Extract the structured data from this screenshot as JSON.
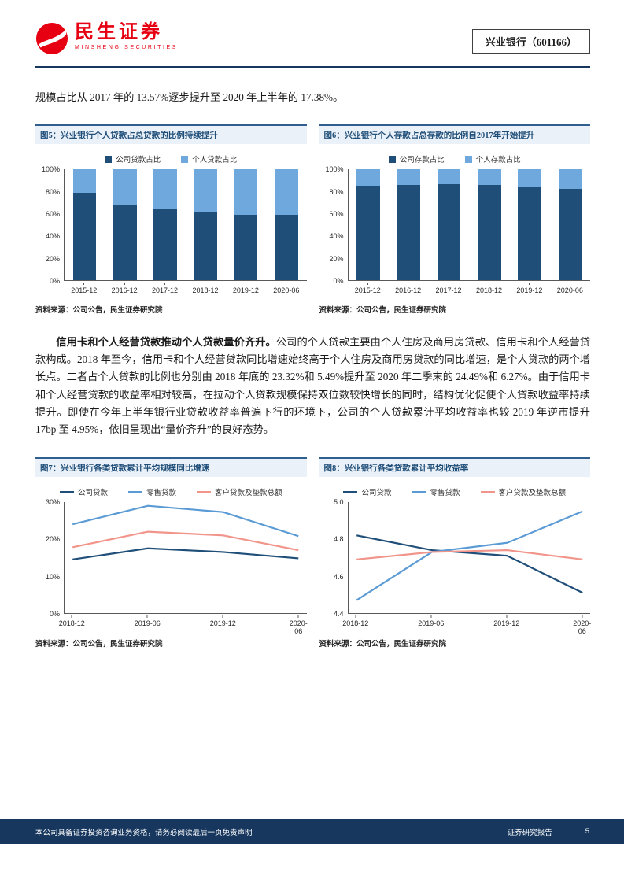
{
  "header": {
    "brand_cn": "民生证券",
    "brand_en": "MINSHENG SECURITIES",
    "stock_label": "兴业银行（601166）"
  },
  "intro_text": "规模占比从 2017 年的 13.57%逐步提升至 2020 年上半年的 17.38%。",
  "paragraph": {
    "bold_lead": "信用卡和个人经营贷款推动个人贷款量价齐升。",
    "body": "公司的个人贷款主要由个人住房及商用房贷款、信用卡和个人经营贷款构成。2018 年至今，信用卡和个人经营贷款同比增速始终高于个人住房及商用房贷款的同比增速，是个人贷款的两个增长点。二者占个人贷款的比例也分别由 2018 年底的 23.32%和 5.49%提升至 2020 年二季末的 24.49%和 6.27%。由于信用卡和个人经营贷款的收益率相对较高，在拉动个人贷款规模保持双位数较快增长的同时，结构优化促使个人贷款收益率持续提升。即使在今年上半年银行业贷款收益率普遍下行的环境下，公司的个人贷款累计平均收益率也较 2019 年逆市提升 17bp 至 4.95%，依旧呈现出“量价齐升”的良好态势。"
  },
  "source_note": "资料来源：公司公告，民生证券研究院",
  "footer": {
    "left": "本公司具备证券投资咨询业务资格，请务必阅读最后一页免责声明",
    "right": "证券研究报告",
    "page": "5"
  },
  "colors": {
    "brand_red": "#E60012",
    "navy": "#1F4E79",
    "light_blue": "#6FA8DC",
    "pink": "#F1948A",
    "footer_bg": "#17375E"
  },
  "chart_data": [
    {
      "type": "bar",
      "stacked": true,
      "title": "图5：兴业银行个人贷款占总贷款的比例持续提升",
      "categories": [
        "2015-12",
        "2016-12",
        "2017-12",
        "2018-12",
        "2019-12",
        "2020-06"
      ],
      "series": [
        {
          "name": "公司贷款占比",
          "color": "#1F4E79",
          "values": [
            79,
            68,
            64,
            62,
            59,
            59
          ]
        },
        {
          "name": "个人贷款占比",
          "color": "#6FA8DC",
          "values": [
            21,
            32,
            36,
            38,
            41,
            41
          ]
        }
      ],
      "ylim": [
        0,
        100
      ],
      "yticks": [
        "0%",
        "20%",
        "40%",
        "60%",
        "80%",
        "100%"
      ],
      "legend_position": "top",
      "grid": false
    },
    {
      "type": "bar",
      "stacked": true,
      "title": "图6：兴业银行个人存款占总存款的比例自2017年开始提升",
      "categories": [
        "2015-12",
        "2016-12",
        "2017-12",
        "2018-12",
        "2019-12",
        "2020-06"
      ],
      "series": [
        {
          "name": "公司存款占比",
          "color": "#1F4E79",
          "values": [
            85,
            86.2,
            86.4,
            85.7,
            84.4,
            82.6
          ]
        },
        {
          "name": "个人存款占比",
          "color": "#6FA8DC",
          "values": [
            15,
            13.8,
            13.6,
            14.3,
            15.6,
            17.4
          ]
        }
      ],
      "ylim": [
        0,
        100
      ],
      "yticks": [
        "0%",
        "20%",
        "40%",
        "60%",
        "80%",
        "100%"
      ],
      "legend_position": "top",
      "grid": false
    },
    {
      "type": "line",
      "title": "图7：兴业银行各类贷款累计平均规模同比增速",
      "x": [
        "2018-12",
        "2019-06",
        "2019-12",
        "2020-06"
      ],
      "series": [
        {
          "name": "公司贷款",
          "color": "#1F4E79",
          "values": [
            14.5,
            17.5,
            16.5,
            14.8
          ]
        },
        {
          "name": "零售贷款",
          "color": "#5B9BD5",
          "values": [
            24,
            29,
            27.3,
            20.8
          ]
        },
        {
          "name": "客户贷款及垫款总额",
          "color": "#F1948A",
          "values": [
            17.8,
            22,
            21,
            17
          ]
        }
      ],
      "ylim": [
        0,
        30
      ],
      "yticks": [
        "0%",
        "10%",
        "20%",
        "30%"
      ],
      "legend_position": "top",
      "grid": false
    },
    {
      "type": "line",
      "title": "图8：兴业银行各类贷款累计平均收益率",
      "x": [
        "2018-12",
        "2019-06",
        "2019-12",
        "2020-06"
      ],
      "series": [
        {
          "name": "公司贷款",
          "color": "#1F4E79",
          "values": [
            4.82,
            4.74,
            4.71,
            4.51
          ]
        },
        {
          "name": "零售贷款",
          "color": "#5B9BD5",
          "values": [
            4.47,
            4.73,
            4.78,
            4.95
          ]
        },
        {
          "name": "客户贷款及垫款总额",
          "color": "#F1948A",
          "values": [
            4.69,
            4.73,
            4.74,
            4.69
          ]
        }
      ],
      "ylim": [
        4.4,
        5.0
      ],
      "yticks": [
        "4.4",
        "4.6",
        "4.8",
        "5.0"
      ],
      "legend_position": "top",
      "grid": false
    }
  ]
}
